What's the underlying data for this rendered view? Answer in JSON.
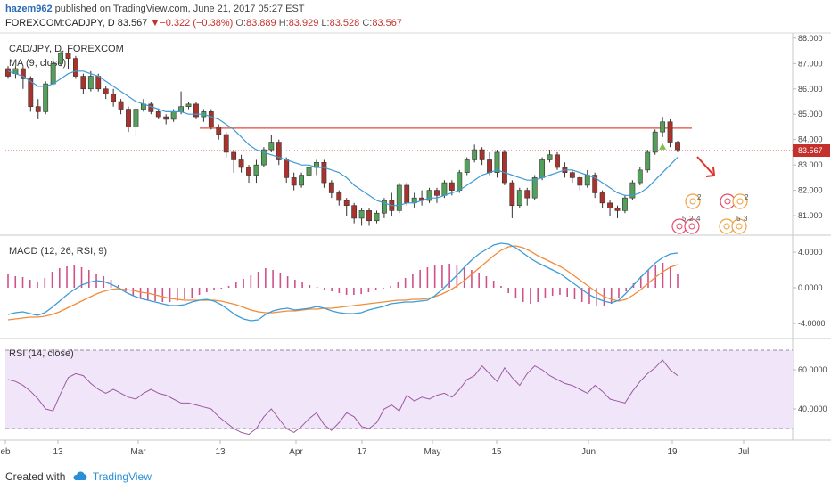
{
  "header": {
    "author": "hazem962",
    "published": " published on TradingView.com, June 21, 2017 05:27 EST",
    "symbol": "FOREXCOM:CADJPY, D",
    "last": "83.567",
    "change": "−0.322 (−0.38%)",
    "open_label": "O:",
    "open": "83.889",
    "high_label": "H:",
    "high": "83.929",
    "low_label": "L:",
    "low": "83.528",
    "close_label": "C:",
    "close": "83.567"
  },
  "footer": {
    "created_with": "Created with",
    "brand": "TradingView"
  },
  "colors": {
    "up": "#53a05a",
    "down": "#a8322c",
    "ma": "#3d9bd6",
    "resistance": "#e24a3a",
    "macd": "#3d9bd6",
    "signal": "#f08c3a",
    "hist": "#d0508c",
    "rsi": "#9c5aa0",
    "rsi_band": "#f1e6f9",
    "arrow": "#e0302a"
  },
  "chart_data": [
    {
      "type": "candlestick",
      "title": "CAD/JPY, D, FOREXCOM",
      "indicator": "MA (9, close)",
      "ylim": [
        80.3,
        88.1
      ],
      "y_ticks": [
        "88.000",
        "87.000",
        "86.000",
        "85.000",
        "84.000",
        "83.000",
        "82.000",
        "81.000"
      ],
      "last_price_label": "83.567",
      "resistance_level": 84.45,
      "x_tick_labels": [
        "eb",
        "13",
        "Mar",
        "13",
        "Apr",
        "17",
        "May",
        "15",
        "Jun",
        "19",
        "Jul"
      ],
      "candles": [
        [
          86.8,
          86.5,
          86.9,
          86.4
        ],
        [
          86.6,
          86.8,
          86.9,
          86.4
        ],
        [
          86.8,
          86.4,
          86.9,
          86.0
        ],
        [
          86.4,
          85.3,
          86.5,
          85.1
        ],
        [
          85.3,
          85.1,
          85.6,
          84.8
        ],
        [
          85.1,
          86.2,
          86.3,
          85.0
        ],
        [
          86.2,
          87.0,
          87.2,
          86.1
        ],
        [
          87.0,
          87.4,
          87.5,
          86.9
        ],
        [
          87.4,
          87.2,
          87.6,
          86.8
        ],
        [
          87.2,
          86.5,
          87.3,
          86.4
        ],
        [
          86.5,
          86.0,
          86.6,
          85.8
        ],
        [
          86.0,
          86.5,
          86.7,
          85.9
        ],
        [
          86.5,
          86.0,
          86.6,
          85.9
        ],
        [
          86.0,
          85.8,
          86.1,
          85.6
        ],
        [
          85.8,
          85.5,
          86.0,
          85.3
        ],
        [
          85.5,
          85.2,
          85.6,
          85.0
        ],
        [
          85.2,
          84.5,
          85.3,
          84.3
        ],
        [
          84.5,
          85.2,
          85.3,
          84.1
        ],
        [
          85.2,
          85.4,
          85.6,
          85.1
        ],
        [
          85.4,
          85.1,
          85.5,
          85.0
        ],
        [
          85.1,
          84.9,
          85.2,
          84.8
        ],
        [
          84.9,
          84.8,
          85.0,
          84.6
        ],
        [
          84.8,
          85.1,
          85.2,
          84.7
        ],
        [
          85.1,
          85.3,
          85.9,
          85.0
        ],
        [
          85.3,
          85.4,
          85.5,
          85.2
        ],
        [
          85.4,
          84.9,
          85.5,
          84.8
        ],
        [
          84.9,
          85.1,
          85.2,
          84.7
        ],
        [
          85.1,
          84.5,
          85.2,
          84.4
        ],
        [
          84.5,
          84.2,
          84.6,
          84.0
        ],
        [
          84.2,
          83.5,
          84.3,
          83.3
        ],
        [
          83.5,
          83.2,
          83.6,
          82.7
        ],
        [
          83.2,
          82.9,
          83.4,
          82.7
        ],
        [
          82.9,
          82.6,
          83.0,
          82.3
        ],
        [
          82.6,
          83.0,
          83.2,
          82.3
        ],
        [
          83.0,
          83.6,
          83.7,
          82.9
        ],
        [
          83.6,
          83.9,
          84.2,
          83.5
        ],
        [
          83.9,
          83.2,
          84.0,
          83.0
        ],
        [
          83.2,
          82.5,
          83.3,
          82.3
        ],
        [
          82.5,
          82.2,
          82.7,
          82.0
        ],
        [
          82.2,
          82.6,
          82.7,
          82.1
        ],
        [
          82.6,
          82.9,
          83.0,
          82.5
        ],
        [
          82.9,
          83.1,
          83.2,
          82.6
        ],
        [
          83.1,
          82.3,
          83.2,
          82.1
        ],
        [
          82.3,
          81.9,
          82.4,
          81.7
        ],
        [
          81.9,
          81.6,
          82.0,
          81.4
        ],
        [
          81.6,
          81.4,
          81.7,
          81.0
        ],
        [
          81.4,
          80.9,
          81.5,
          80.7
        ],
        [
          80.9,
          81.2,
          81.3,
          80.6
        ],
        [
          81.2,
          80.8,
          81.3,
          80.6
        ],
        [
          80.8,
          81.1,
          81.2,
          80.7
        ],
        [
          81.1,
          81.6,
          81.7,
          80.9
        ],
        [
          81.6,
          81.2,
          81.9,
          81.0
        ],
        [
          81.2,
          82.2,
          82.3,
          81.1
        ],
        [
          82.2,
          81.5,
          82.3,
          81.4
        ],
        [
          81.5,
          81.7,
          81.9,
          81.3
        ],
        [
          81.7,
          81.6,
          82.0,
          81.4
        ],
        [
          81.6,
          82.0,
          82.1,
          81.5
        ],
        [
          82.0,
          81.8,
          82.1,
          81.5
        ],
        [
          81.8,
          82.3,
          82.4,
          81.7
        ],
        [
          82.3,
          82.0,
          82.4,
          81.8
        ],
        [
          82.0,
          82.7,
          82.8,
          81.9
        ],
        [
          82.7,
          83.2,
          83.3,
          82.6
        ],
        [
          83.2,
          83.6,
          83.8,
          83.1
        ],
        [
          83.6,
          83.2,
          83.7,
          83.0
        ],
        [
          83.2,
          82.7,
          83.5,
          82.6
        ],
        [
          82.7,
          83.5,
          83.6,
          82.5
        ],
        [
          83.5,
          82.3,
          83.6,
          82.2
        ],
        [
          82.3,
          81.4,
          82.4,
          80.9
        ],
        [
          81.4,
          82.0,
          82.1,
          81.3
        ],
        [
          82.0,
          81.7,
          82.1,
          81.4
        ],
        [
          81.7,
          82.5,
          82.6,
          81.6
        ],
        [
          82.5,
          83.2,
          83.3,
          82.4
        ],
        [
          83.2,
          83.4,
          83.6,
          83.1
        ],
        [
          83.4,
          82.9,
          83.5,
          82.8
        ],
        [
          82.9,
          82.7,
          83.1,
          82.5
        ],
        [
          82.7,
          82.5,
          82.8,
          82.3
        ],
        [
          82.5,
          82.2,
          82.6,
          82.0
        ],
        [
          82.2,
          82.6,
          82.8,
          82.1
        ],
        [
          82.6,
          81.9,
          82.7,
          81.7
        ],
        [
          81.9,
          81.5,
          82.0,
          81.3
        ],
        [
          81.5,
          81.3,
          81.6,
          81.0
        ],
        [
          81.3,
          81.2,
          81.4,
          80.9
        ],
        [
          81.2,
          81.7,
          81.8,
          81.1
        ],
        [
          81.7,
          82.3,
          82.4,
          81.6
        ],
        [
          82.3,
          82.8,
          82.9,
          82.2
        ],
        [
          82.8,
          83.5,
          83.6,
          82.7
        ],
        [
          83.5,
          84.3,
          84.4,
          83.4
        ],
        [
          84.3,
          84.7,
          84.9,
          84.1
        ],
        [
          84.7,
          83.9,
          84.8,
          83.7
        ],
        [
          83.9,
          83.6,
          83.95,
          83.5
        ]
      ],
      "ma": [
        86.7,
        86.6,
        86.5,
        86.3,
        86.1,
        86.1,
        86.2,
        86.4,
        86.6,
        86.7,
        86.7,
        86.6,
        86.5,
        86.3,
        86.1,
        85.9,
        85.7,
        85.5,
        85.4,
        85.3,
        85.2,
        85.1,
        85.1,
        85.1,
        85.0,
        85.0,
        85.0,
        84.9,
        84.8,
        84.6,
        84.4,
        84.1,
        83.8,
        83.6,
        83.5,
        83.4,
        83.3,
        83.2,
        83.1,
        83.0,
        83.0,
        82.9,
        82.9,
        82.8,
        82.7,
        82.5,
        82.2,
        82.0,
        81.8,
        81.6,
        81.5,
        81.4,
        81.4,
        81.5,
        81.5,
        81.6,
        81.7,
        81.7,
        81.8,
        81.9,
        82.0,
        82.2,
        82.4,
        82.6,
        82.7,
        82.8,
        82.7,
        82.6,
        82.5,
        82.4,
        82.4,
        82.5,
        82.6,
        82.7,
        82.8,
        82.8,
        82.7,
        82.6,
        82.5,
        82.3,
        82.1,
        81.9,
        81.8,
        81.8,
        81.9,
        82.1,
        82.4,
        82.7,
        83.0,
        83.3
      ],
      "annotations": {
        "triangle_marker": "up",
        "arrow": "down"
      }
    },
    {
      "type": "line",
      "title": "MACD (12, 26, RSI, 9)",
      "ylim": [
        -5.5,
        5.5
      ],
      "y_ticks": [
        "4.0000",
        "0.0000",
        "-4.0000"
      ],
      "macd": [
        -3.0,
        -2.8,
        -2.7,
        -2.9,
        -3.1,
        -2.8,
        -2.2,
        -1.5,
        -0.8,
        -0.2,
        0.3,
        0.6,
        0.8,
        0.7,
        0.4,
        0.0,
        -0.5,
        -0.9,
        -1.2,
        -1.4,
        -1.6,
        -1.8,
        -2.0,
        -2.0,
        -1.9,
        -1.6,
        -1.4,
        -1.3,
        -1.5,
        -1.9,
        -2.5,
        -3.1,
        -3.5,
        -3.7,
        -3.6,
        -3.0,
        -2.6,
        -2.4,
        -2.3,
        -2.5,
        -2.4,
        -2.3,
        -2.1,
        -2.3,
        -2.6,
        -2.8,
        -2.9,
        -2.9,
        -2.8,
        -2.5,
        -2.3,
        -2.1,
        -1.8,
        -1.7,
        -1.6,
        -1.6,
        -1.5,
        -1.4,
        -0.9,
        -0.2,
        0.6,
        1.4,
        2.3,
        3.1,
        3.8,
        4.3,
        4.8,
        5.0,
        4.9,
        4.5,
        3.9,
        3.3,
        2.8,
        2.4,
        2.0,
        1.6,
        1.0,
        0.4,
        -0.2,
        -0.8,
        -1.2,
        -1.5,
        -1.7,
        -1.4,
        -0.6,
        0.3,
        1.2,
        2.0,
        2.8,
        3.4,
        3.8,
        3.9
      ],
      "signal": [
        -3.6,
        -3.5,
        -3.4,
        -3.3,
        -3.3,
        -3.2,
        -3.0,
        -2.7,
        -2.3,
        -1.9,
        -1.5,
        -1.1,
        -0.7,
        -0.4,
        -0.2,
        -0.1,
        -0.2,
        -0.3,
        -0.5,
        -0.6,
        -0.8,
        -1.0,
        -1.2,
        -1.3,
        -1.4,
        -1.4,
        -1.4,
        -1.4,
        -1.4,
        -1.5,
        -1.7,
        -1.9,
        -2.2,
        -2.5,
        -2.7,
        -2.8,
        -2.8,
        -2.7,
        -2.6,
        -2.6,
        -2.5,
        -2.4,
        -2.4,
        -2.3,
        -2.3,
        -2.2,
        -2.1,
        -2.0,
        -1.9,
        -1.8,
        -1.7,
        -1.6,
        -1.5,
        -1.4,
        -1.4,
        -1.3,
        -1.3,
        -1.2,
        -1.0,
        -0.7,
        -0.3,
        0.2,
        0.8,
        1.5,
        2.2,
        2.9,
        3.6,
        4.2,
        4.6,
        4.7,
        4.5,
        4.1,
        3.6,
        3.2,
        2.8,
        2.4,
        1.9,
        1.3,
        0.7,
        0.1,
        -0.5,
        -1.0,
        -1.3,
        -1.5,
        -1.3,
        -0.8,
        -0.2,
        0.5,
        1.2,
        1.8,
        2.3,
        2.6
      ],
      "histogram": [
        1.5,
        1.3,
        1.2,
        0.9,
        0.7,
        1.1,
        1.8,
        2.2,
        2.4,
        2.5,
        2.3,
        2.0,
        1.6,
        1.3,
        0.9,
        0.3,
        -0.4,
        -0.9,
        -1.2,
        -1.4,
        -1.5,
        -1.6,
        -1.6,
        -1.5,
        -1.3,
        -1.1,
        -0.8,
        -0.5,
        -0.3,
        -0.1,
        0.2,
        0.6,
        1.0,
        1.4,
        1.8,
        2.2,
        2.0,
        1.7,
        1.3,
        0.9,
        0.6,
        0.3,
        0.1,
        -0.2,
        -0.4,
        -0.6,
        -0.8,
        -0.8,
        -0.7,
        -0.5,
        -0.3,
        -0.1,
        0.2,
        0.6,
        1.1,
        1.6,
        2.0,
        2.3,
        2.5,
        2.6,
        2.7,
        2.5,
        2.3,
        2.0,
        1.7,
        1.3,
        0.8,
        0.2,
        -0.6,
        -1.2,
        -1.6,
        -1.8,
        -1.6,
        -1.2,
        -0.9,
        -0.8,
        -1.0,
        -1.3,
        -1.6,
        -1.8,
        -2.0,
        -2.1,
        -1.8,
        -1.2,
        -0.4,
        0.5,
        1.3,
        2.0,
        2.5,
        2.8,
        2.4,
        1.6
      ]
    },
    {
      "type": "line",
      "title": "RSI (14, close)",
      "ylim": [
        25,
        75
      ],
      "y_ticks": [
        "60.0000",
        "40.0000"
      ],
      "band": [
        30,
        70
      ],
      "values": [
        55,
        54,
        52,
        49,
        45,
        40,
        39,
        48,
        56,
        58,
        57,
        53,
        50,
        48,
        50,
        48,
        46,
        45,
        48,
        50,
        48,
        47,
        45,
        43,
        43,
        42,
        41,
        40,
        36,
        33,
        30,
        28,
        27,
        30,
        36,
        40,
        35,
        30,
        28,
        31,
        35,
        38,
        32,
        29,
        33,
        38,
        36,
        31,
        30,
        33,
        40,
        42,
        39,
        47,
        44,
        46,
        45,
        47,
        48,
        46,
        50,
        55,
        57,
        62,
        58,
        54,
        61,
        56,
        52,
        58,
        62,
        60,
        57,
        55,
        53,
        52,
        50,
        48,
        52,
        49,
        45,
        44,
        43,
        49,
        54,
        58,
        61,
        65,
        60,
        57
      ]
    }
  ]
}
